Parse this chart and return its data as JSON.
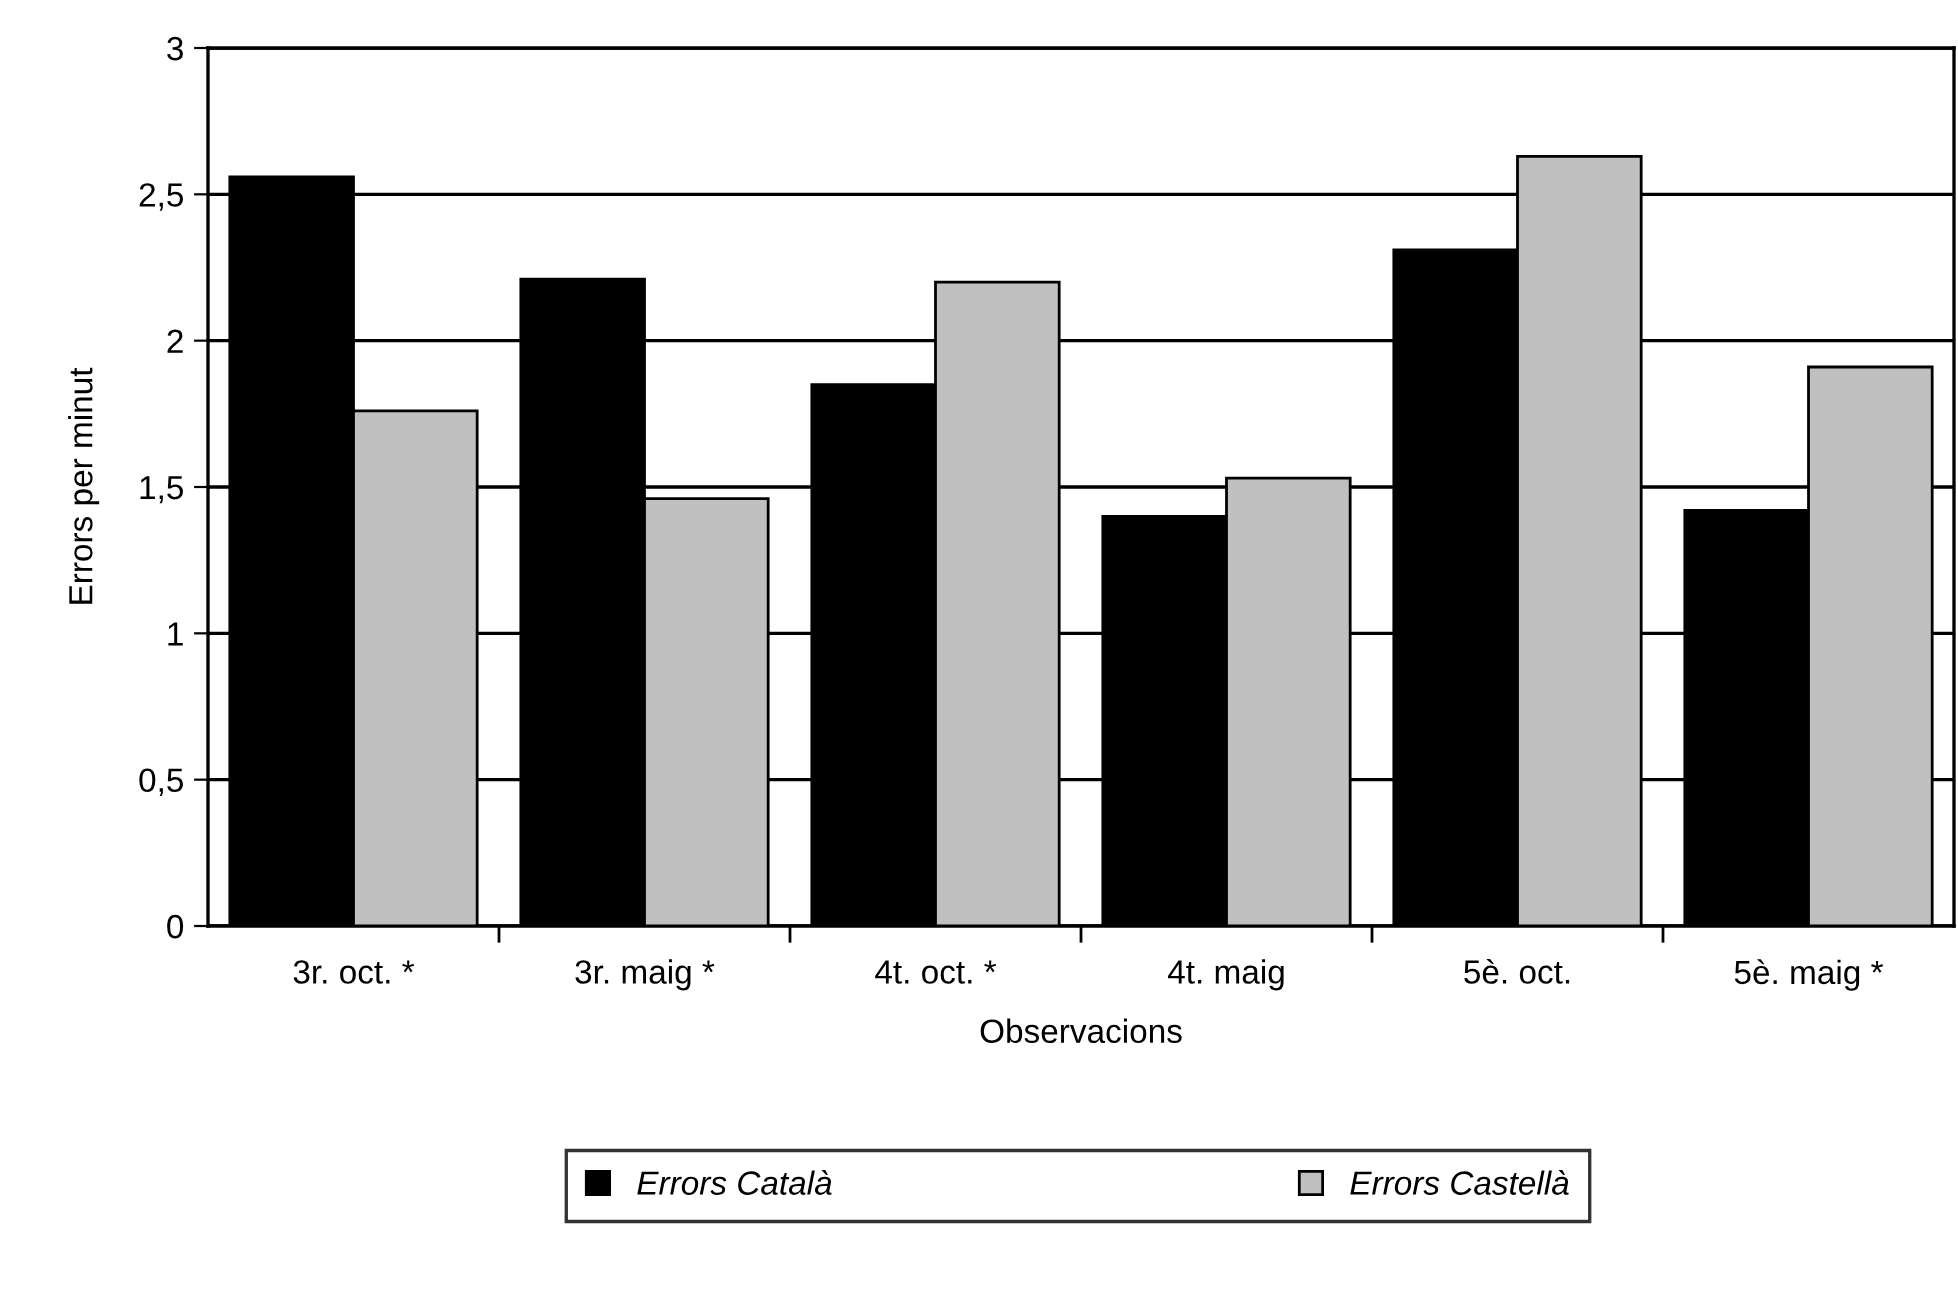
{
  "chart_data": {
    "type": "bar",
    "xlabel": "Observacions",
    "ylabel": "Errors per minut",
    "categories": [
      "3r. oct. *",
      "3r. maig *",
      "4t. oct. *",
      "4t. maig",
      "5è. oct.",
      "5è. maig *"
    ],
    "series": [
      {
        "name": "Errors Català",
        "color": "#000000",
        "values": [
          2.56,
          2.21,
          1.85,
          1.4,
          2.31,
          1.42
        ]
      },
      {
        "name": "Errors Castellà",
        "color": "#c0c0c0",
        "values": [
          1.76,
          1.46,
          2.2,
          1.53,
          2.63,
          1.91
        ]
      }
    ],
    "ylim": [
      0,
      3
    ],
    "yticks": [
      0,
      {
        "value": 0.5,
        "label": "0,5"
      },
      1,
      {
        "value": 1.5,
        "label": "1,5"
      },
      2,
      {
        "value": 2.5,
        "label": "2,5"
      },
      3
    ],
    "grid": "y",
    "legend": "bottom"
  }
}
